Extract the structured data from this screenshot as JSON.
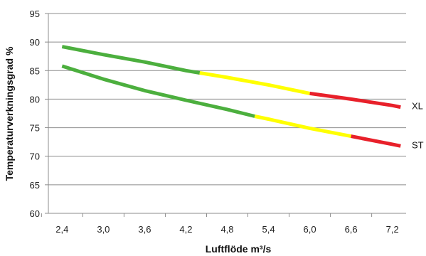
{
  "chart_data": {
    "type": "line",
    "xlabel": "Luftflöde m³/s",
    "ylabel": "Temperaturverkningsgrad %",
    "xlim": [
      2.2,
      7.4
    ],
    "ylim": [
      60,
      95
    ],
    "x_ticks": [
      "2,4",
      "3,0",
      "3,6",
      "4,2",
      "4,8",
      "5,4",
      "6,0",
      "6,6",
      "7,2"
    ],
    "y_ticks": [
      "60",
      "65",
      "70",
      "75",
      "80",
      "85",
      "90",
      "95"
    ],
    "grid": "horizontal",
    "series": [
      {
        "name": "XL",
        "x": [
          2.4,
          3.0,
          3.6,
          4.2,
          4.4,
          4.8,
          5.4,
          6.0,
          6.6,
          7.2,
          7.32
        ],
        "y": [
          89.2,
          87.8,
          86.5,
          85.0,
          84.6,
          83.8,
          82.5,
          81.0,
          80.0,
          78.9,
          78.6
        ],
        "segments": [
          {
            "from": 2.4,
            "to": 4.4,
            "color": "#4caf3e"
          },
          {
            "from": 4.4,
            "to": 6.0,
            "color": "#ffff00"
          },
          {
            "from": 6.0,
            "to": 7.32,
            "color": "#e8202a"
          }
        ]
      },
      {
        "name": "ST",
        "x": [
          2.4,
          3.0,
          3.6,
          4.2,
          4.8,
          5.2,
          5.4,
          6.0,
          6.6,
          7.2,
          7.32
        ],
        "y": [
          85.8,
          83.5,
          81.5,
          79.8,
          78.2,
          77.0,
          76.5,
          74.9,
          73.5,
          72.1,
          71.8
        ],
        "segments": [
          {
            "from": 2.4,
            "to": 5.2,
            "color": "#4caf3e"
          },
          {
            "from": 5.2,
            "to": 6.6,
            "color": "#ffff00"
          },
          {
            "from": 6.6,
            "to": 7.32,
            "color": "#e8202a"
          }
        ]
      }
    ]
  }
}
